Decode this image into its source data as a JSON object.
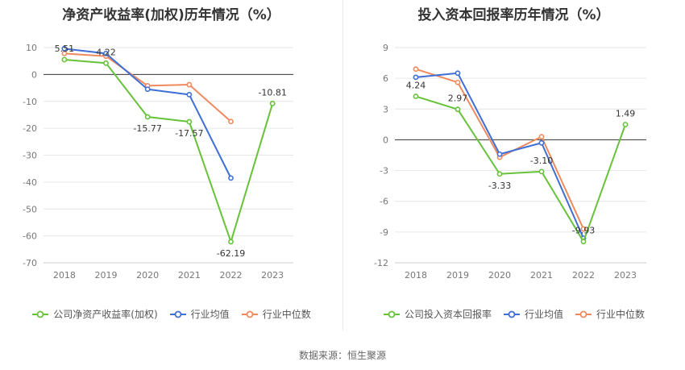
{
  "source": "数据来源：恒生聚源",
  "colors": {
    "company": "#67c23a",
    "avg": "#3f6fd6",
    "median": "#ef8a5e",
    "grid": "#e6e6e6",
    "axis": "#333333",
    "tick": "#777777"
  },
  "chart_data": [
    {
      "type": "line",
      "title": "净资产收益率(加权)历年情况（%）",
      "categories": [
        "2018",
        "2019",
        "2020",
        "2021",
        "2022",
        "2023"
      ],
      "ylim": [
        -70,
        10
      ],
      "yticks": [
        10,
        0,
        -10,
        -20,
        -30,
        -40,
        -50,
        -60,
        -70
      ],
      "grid": true,
      "legend_position": "bottom",
      "series": [
        {
          "name": "公司净资产收益率(加权)",
          "color": "#67c23a",
          "values": [
            5.51,
            4.22,
            -15.77,
            -17.57,
            -62.19,
            -10.81
          ],
          "labeled": true
        },
        {
          "name": "行业均值",
          "color": "#3f6fd6",
          "values": [
            9.6,
            7.8,
            -5.5,
            -7.5,
            -38.5,
            null
          ]
        },
        {
          "name": "行业中位数",
          "color": "#ef8a5e",
          "values": [
            7.8,
            6.8,
            -4.2,
            -3.8,
            -17.5,
            null
          ]
        }
      ]
    },
    {
      "type": "line",
      "title": "投入资本回报率历年情况（%）",
      "categories": [
        "2018",
        "2019",
        "2020",
        "2021",
        "2022",
        "2023"
      ],
      "ylim": [
        -12,
        9
      ],
      "yticks": [
        9,
        6,
        3,
        0,
        -3,
        -6,
        -9,
        -12
      ],
      "grid": true,
      "legend_position": "bottom",
      "series": [
        {
          "name": "公司投入资本回报率",
          "color": "#67c23a",
          "values": [
            4.24,
            2.97,
            -3.33,
            -3.1,
            -9.93,
            1.49
          ],
          "labeled": true
        },
        {
          "name": "行业均值",
          "color": "#3f6fd6",
          "values": [
            6.1,
            6.5,
            -1.4,
            -0.3,
            -9.6,
            null
          ]
        },
        {
          "name": "行业中位数",
          "color": "#ef8a5e",
          "values": [
            6.9,
            5.6,
            -1.7,
            0.3,
            -8.7,
            null
          ]
        }
      ]
    }
  ]
}
